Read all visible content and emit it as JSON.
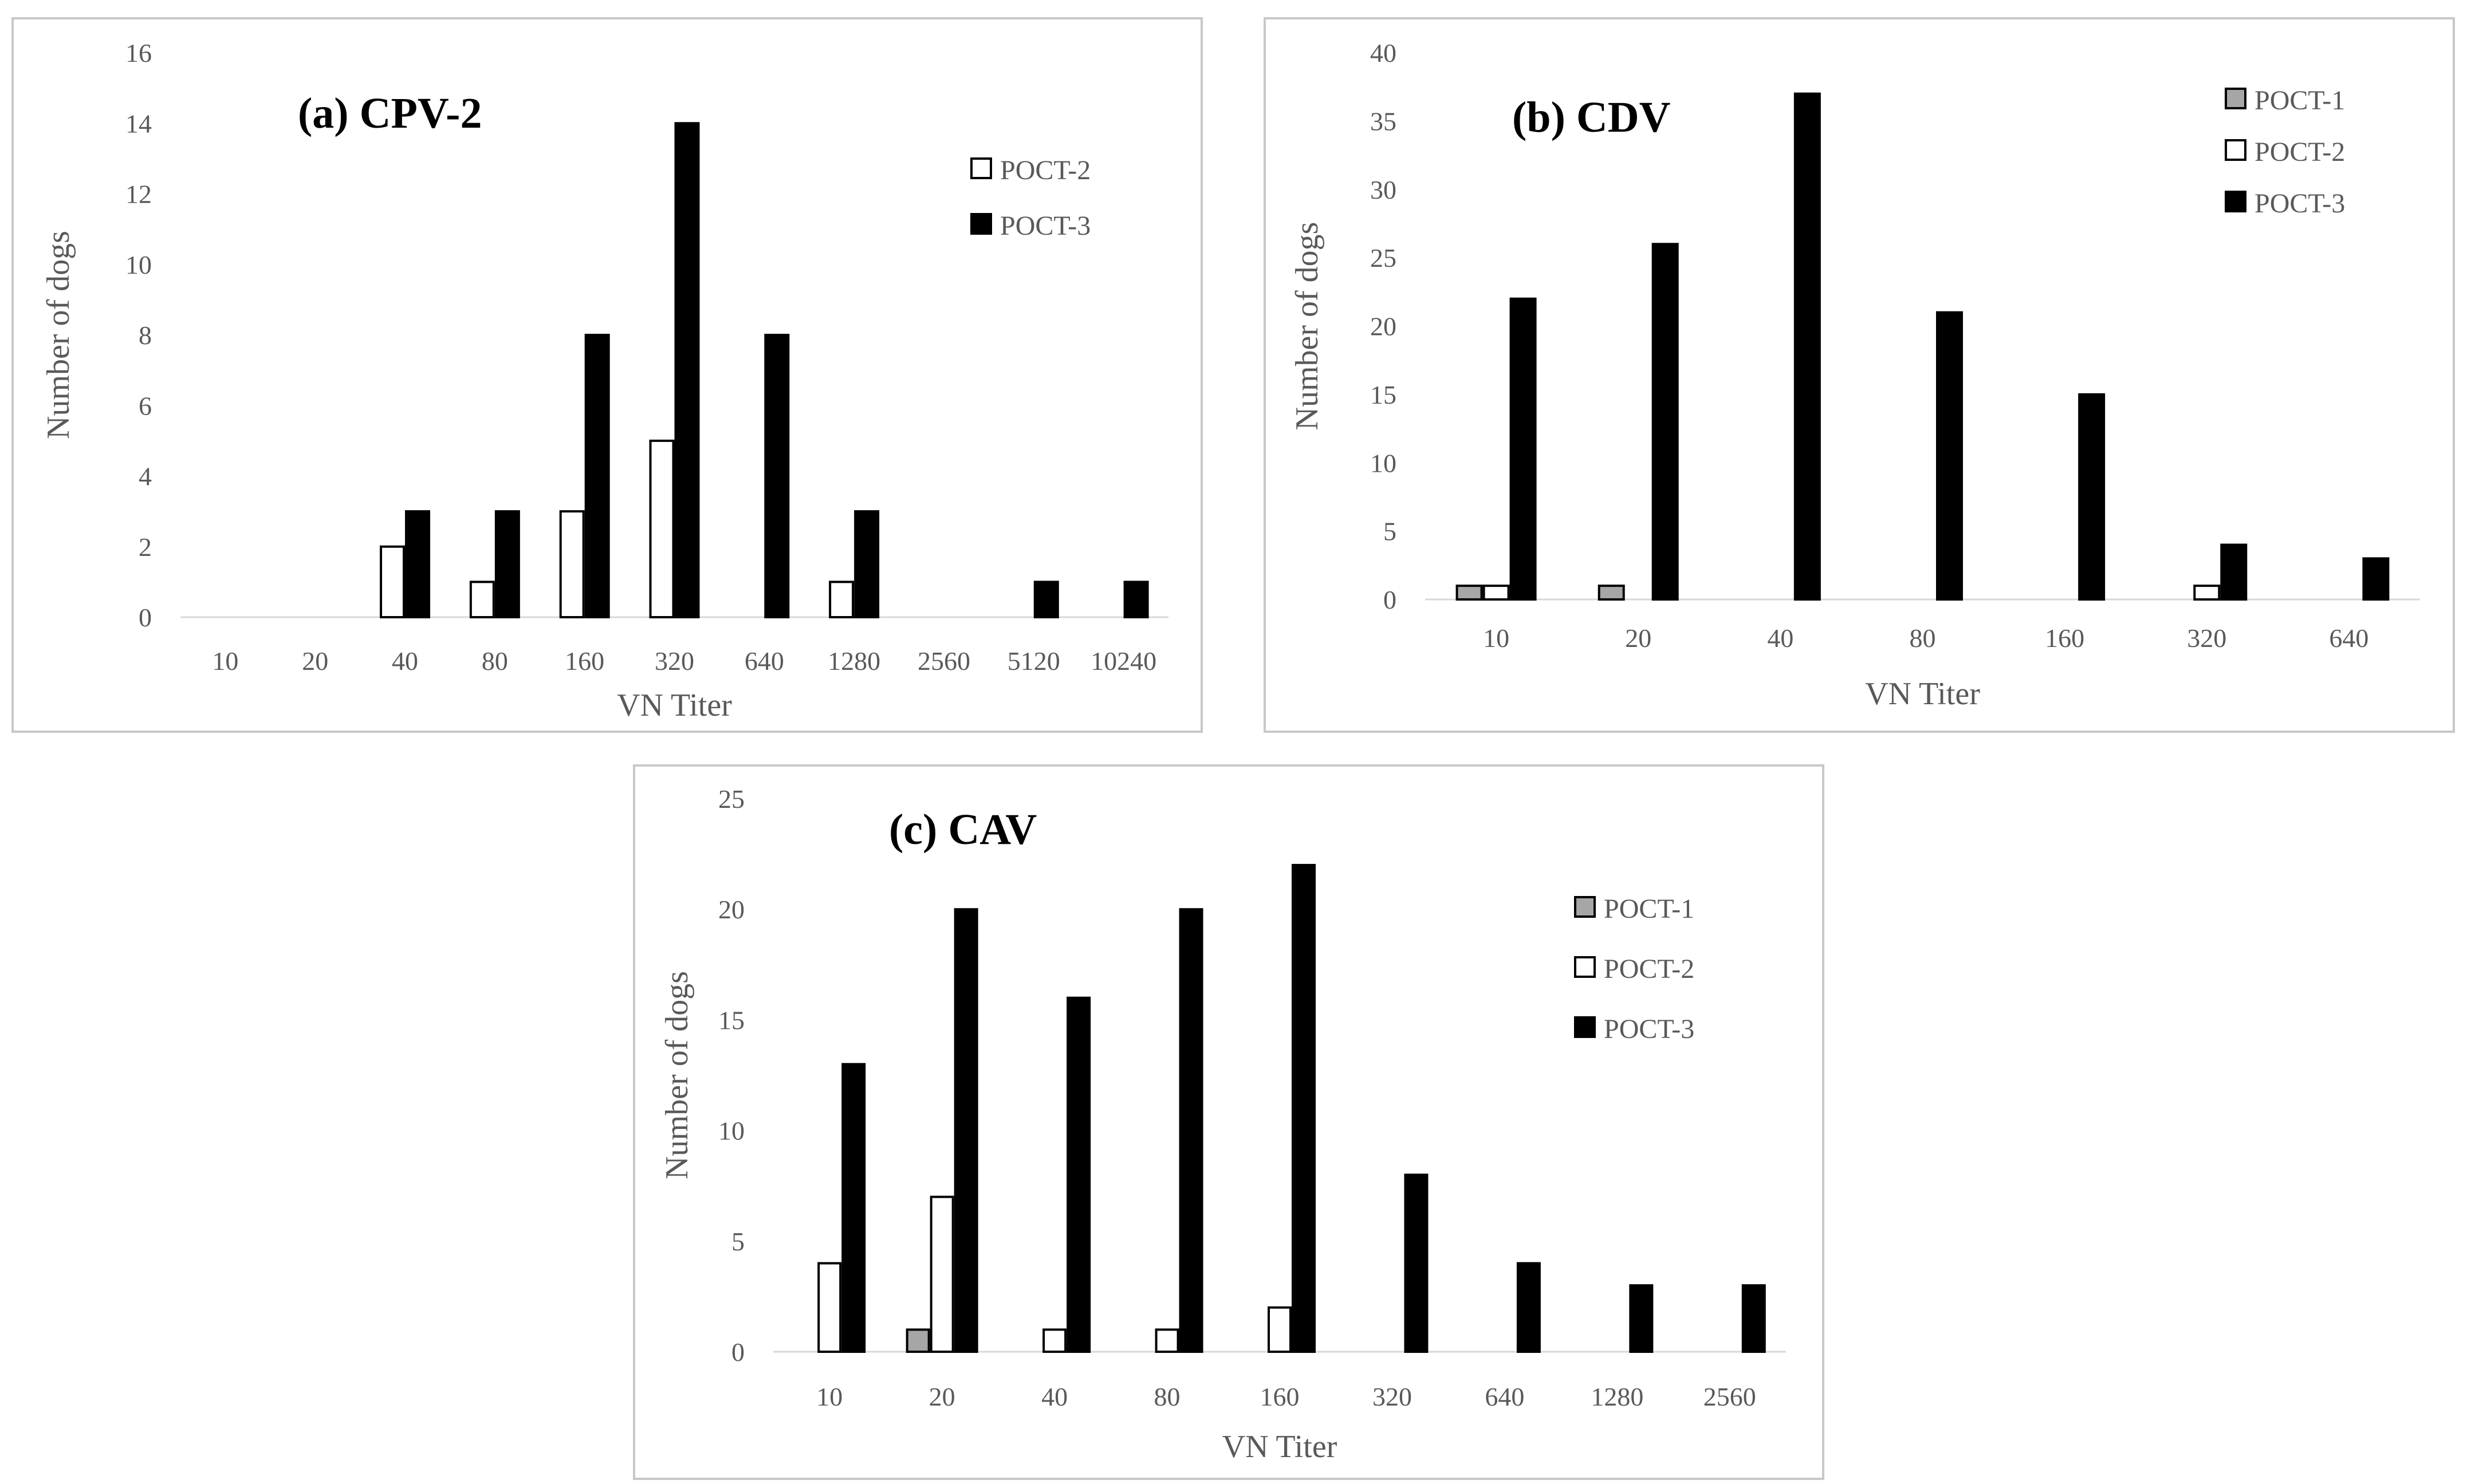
{
  "colors": {
    "POCT-1": "#a6a6a6",
    "POCT-2": "#ffffff",
    "POCT-3": "#000000",
    "outline": "#000000"
  },
  "chart_data": [
    {
      "type": "bar",
      "title": "(a) CPV-2",
      "xlabel": "VN Titer",
      "ylabel": "Number of dogs",
      "ylim": [
        0,
        16
      ],
      "yticks": [
        0,
        2,
        4,
        6,
        8,
        10,
        12,
        14,
        16
      ],
      "categories": [
        "10",
        "20",
        "40",
        "80",
        "160",
        "320",
        "640",
        "1280",
        "2560",
        "5120",
        "10240"
      ],
      "legend": "top-right",
      "series": [
        {
          "name": "POCT-2",
          "values": [
            0,
            0,
            2,
            1,
            3,
            5,
            0,
            1,
            0,
            0,
            0
          ]
        },
        {
          "name": "POCT-3",
          "values": [
            0,
            0,
            3,
            3,
            8,
            14,
            8,
            3,
            0,
            1,
            1
          ]
        }
      ]
    },
    {
      "type": "bar",
      "title": "(b) CDV",
      "xlabel": "VN Titer",
      "ylabel": "Number of dogs",
      "ylim": [
        0,
        40
      ],
      "yticks": [
        0,
        5,
        10,
        15,
        20,
        25,
        30,
        35,
        40
      ],
      "categories": [
        "10",
        "20",
        "40",
        "80",
        "160",
        "320",
        "640"
      ],
      "legend": "top-right",
      "series": [
        {
          "name": "POCT-1",
          "values": [
            1,
            1,
            0,
            0,
            0,
            0,
            0
          ]
        },
        {
          "name": "POCT-2",
          "values": [
            1,
            0,
            0,
            0,
            0,
            1,
            0
          ]
        },
        {
          "name": "POCT-3",
          "values": [
            22,
            26,
            37,
            21,
            15,
            4,
            3
          ]
        }
      ]
    },
    {
      "type": "bar",
      "title": "(c) CAV",
      "xlabel": "VN Titer",
      "ylabel": "Number of dogs",
      "ylim": [
        0,
        25
      ],
      "yticks": [
        0,
        5,
        10,
        15,
        20,
        25
      ],
      "categories": [
        "10",
        "20",
        "40",
        "80",
        "160",
        "320",
        "640",
        "1280",
        "2560"
      ],
      "legend": "top-right",
      "series": [
        {
          "name": "POCT-1",
          "values": [
            0,
            1,
            0,
            0,
            0,
            0,
            0,
            0,
            0
          ]
        },
        {
          "name": "POCT-2",
          "values": [
            4,
            7,
            1,
            1,
            2,
            0,
            0,
            0,
            0
          ]
        },
        {
          "name": "POCT-3",
          "values": [
            13,
            20,
            16,
            20,
            22,
            8,
            4,
            3,
            3
          ]
        }
      ]
    }
  ]
}
